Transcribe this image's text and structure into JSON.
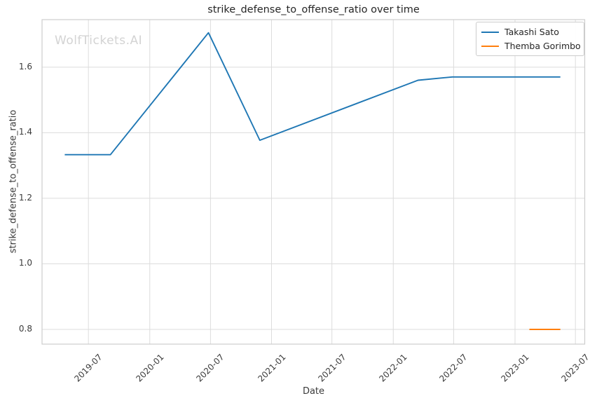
{
  "watermark": "WolfTickets.AI",
  "chart_data": {
    "type": "line",
    "title": "strike_defense_to_offense_ratio over time",
    "xlabel": "Date",
    "ylabel": "strike_defense_to_offense_ratio",
    "grid": true,
    "legend_position": "upper right",
    "xlim": [
      "2019-02-12",
      "2023-07-29"
    ],
    "ylim": [
      0.755,
      1.745
    ],
    "x_ticks": [
      {
        "label": "2019-07",
        "date": "2019-07-01"
      },
      {
        "label": "2020-01",
        "date": "2020-01-01"
      },
      {
        "label": "2020-07",
        "date": "2020-07-01"
      },
      {
        "label": "2021-01",
        "date": "2021-01-01"
      },
      {
        "label": "2021-07",
        "date": "2021-07-01"
      },
      {
        "label": "2022-01",
        "date": "2022-01-01"
      },
      {
        "label": "2022-07",
        "date": "2022-07-01"
      },
      {
        "label": "2023-01",
        "date": "2023-01-01"
      },
      {
        "label": "2023-07",
        "date": "2023-07-01"
      }
    ],
    "y_ticks": [
      {
        "label": "0.8",
        "value": 0.8
      },
      {
        "label": "1.0",
        "value": 1.0
      },
      {
        "label": "1.2",
        "value": 1.2
      },
      {
        "label": "1.4",
        "value": 1.4
      },
      {
        "label": "1.6",
        "value": 1.6
      }
    ],
    "series": [
      {
        "name": "Takashi Sato",
        "color": "#1f77b4",
        "points": [
          {
            "date": "2019-04-21",
            "value": 1.333
          },
          {
            "date": "2019-09-05",
            "value": 1.333
          },
          {
            "date": "2020-06-25",
            "value": 1.705
          },
          {
            "date": "2020-11-26",
            "value": 1.377
          },
          {
            "date": "2022-03-16",
            "value": 1.56
          },
          {
            "date": "2022-06-27",
            "value": 1.57
          },
          {
            "date": "2023-05-17",
            "value": 1.57
          }
        ]
      },
      {
        "name": "Themba Gorimbo",
        "color": "#ff7f0e",
        "points": [
          {
            "date": "2023-02-13",
            "value": 0.8
          },
          {
            "date": "2023-05-17",
            "value": 0.8
          }
        ]
      }
    ],
    "colors": {
      "grid": "#dcdcdc",
      "spine": "#cdcdcd",
      "tick_label": "#3b3b3b",
      "title": "#262626",
      "watermark": "#d3d3d3",
      "background": "#ffffff"
    }
  }
}
